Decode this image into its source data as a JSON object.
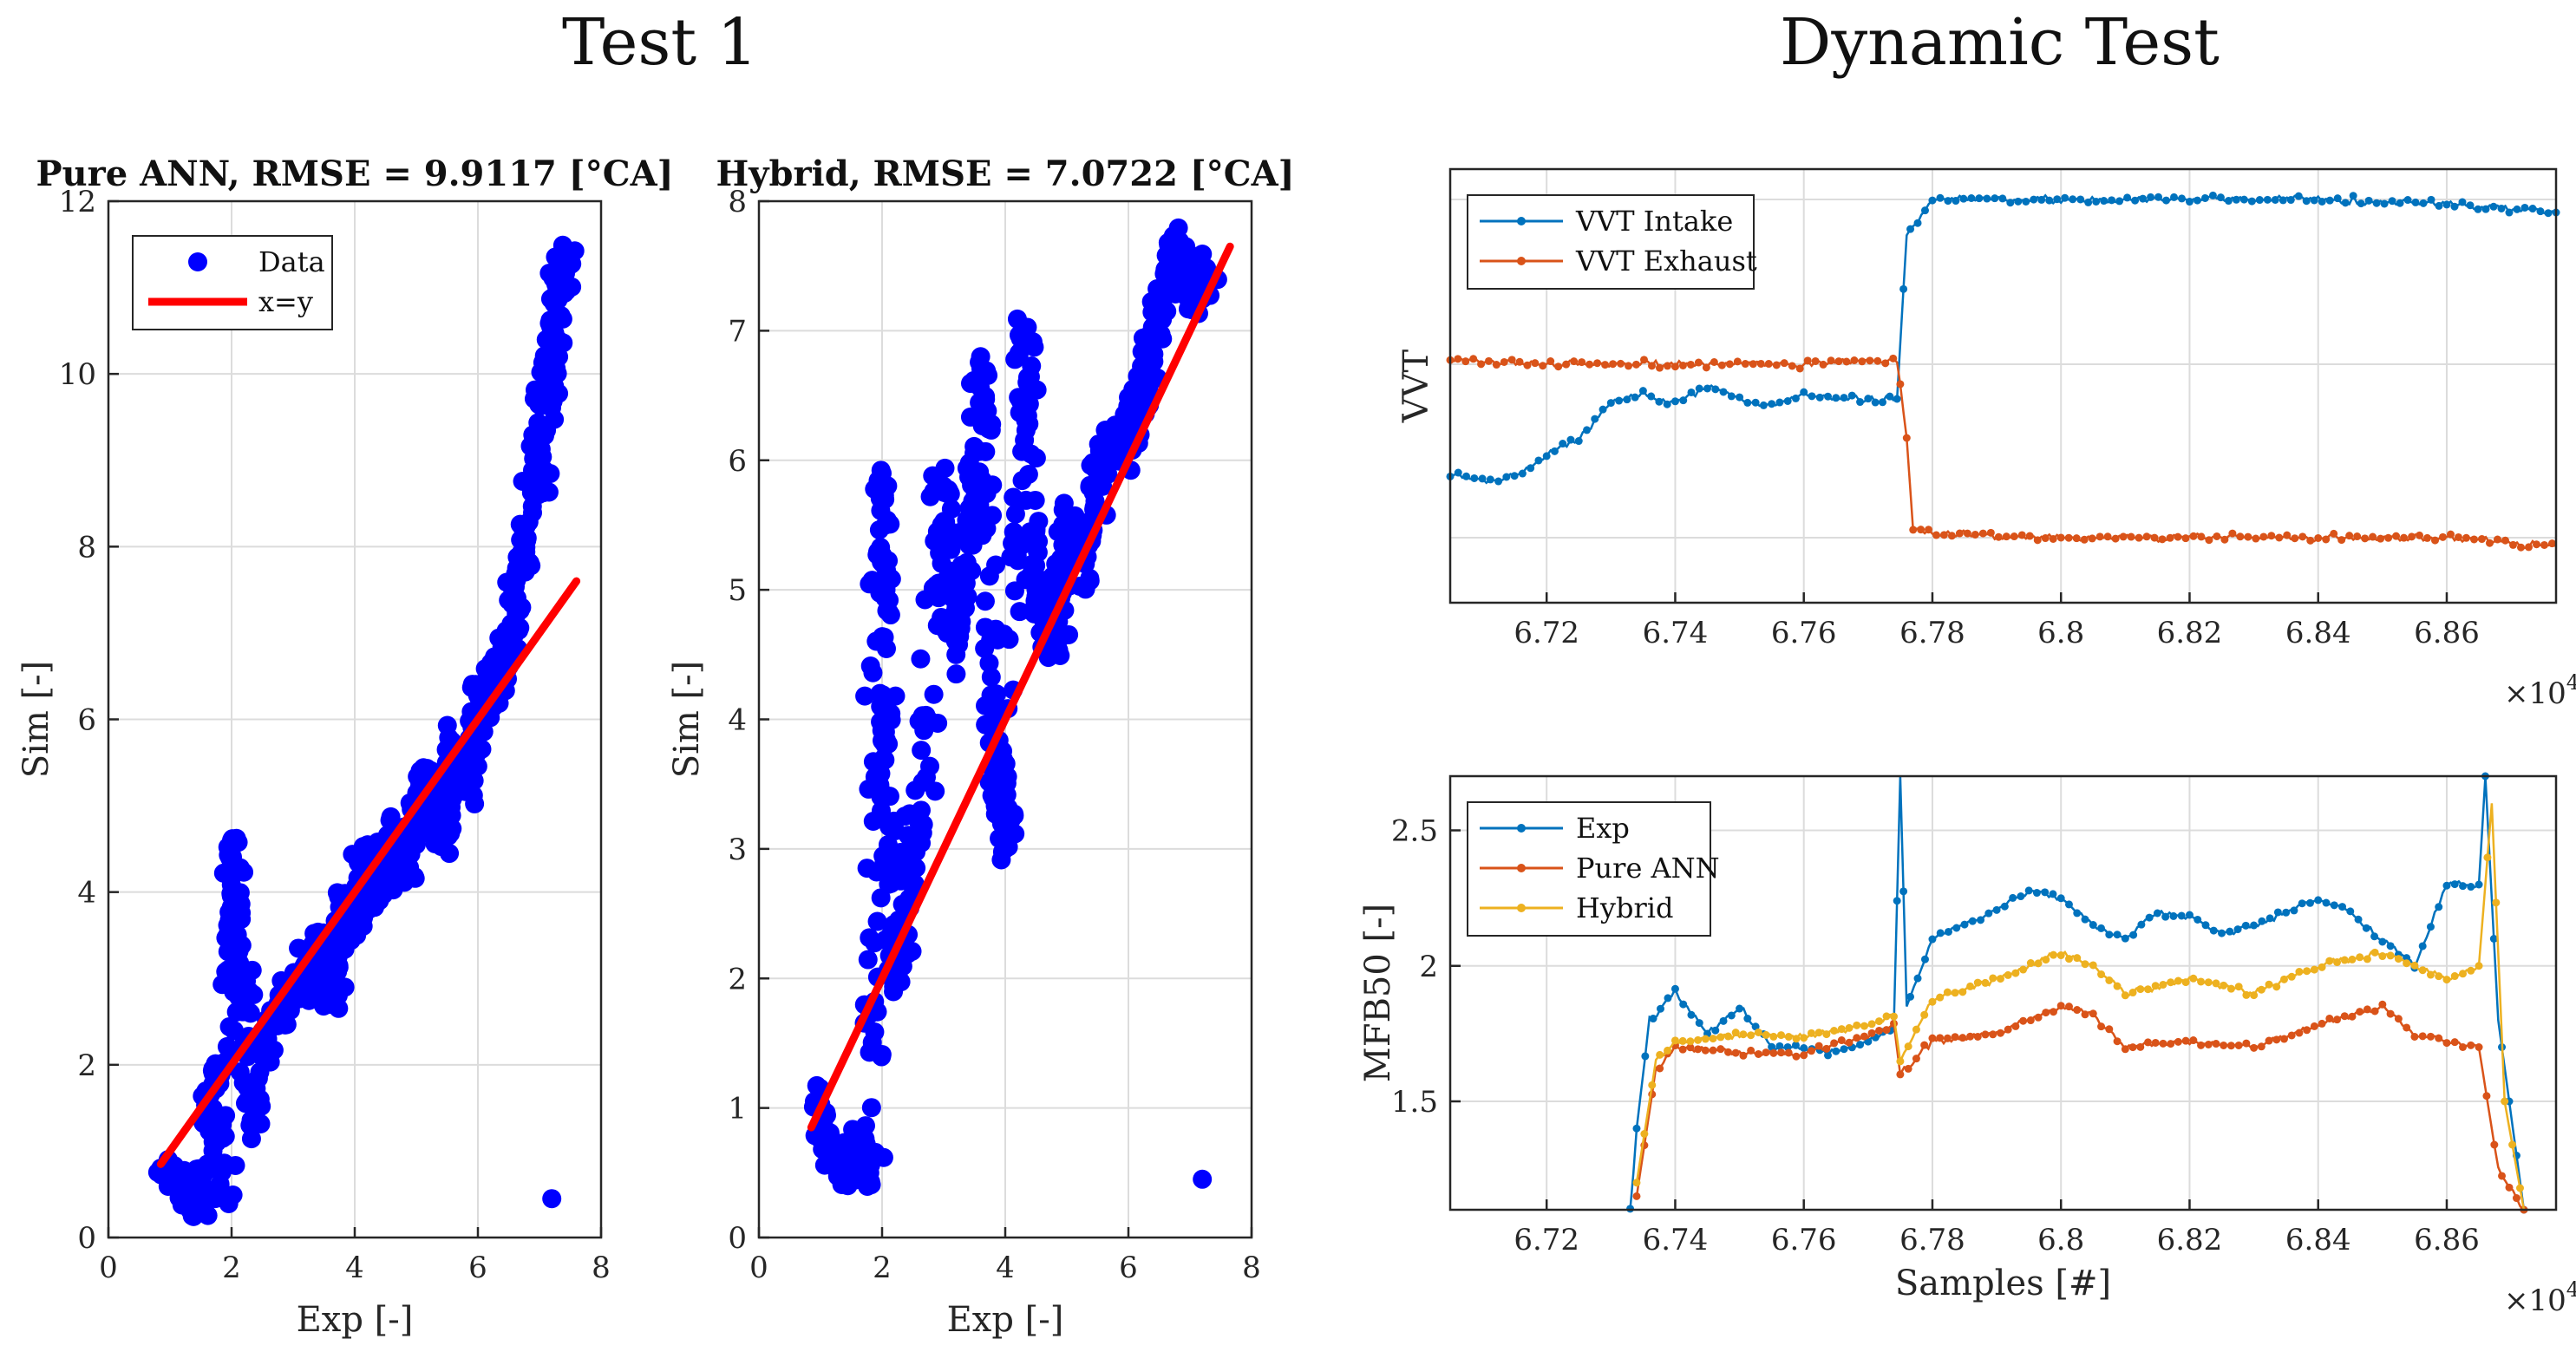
{
  "headings": {
    "left": "Test 1",
    "right": "Dynamic Test"
  },
  "chart_data": [
    {
      "type": "scatter",
      "title": "Pure ANN, RMSE = 9.9117 [°CA]",
      "xlabel": "Exp [-]",
      "ylabel": "Sim [-]",
      "xlim": [
        0,
        8
      ],
      "ylim": [
        0,
        12
      ],
      "xticks": [
        "0",
        "2",
        "4",
        "6",
        "8"
      ],
      "yticks": [
        "0",
        "2",
        "4",
        "6",
        "8",
        "10",
        "12"
      ],
      "grid": true,
      "legend_position": "top-left",
      "series": [
        {
          "name": "Data",
          "kind": "points",
          "color": "#0000ff",
          "points": [
            [
              0.85,
              0.8
            ],
            [
              1.3,
              0.6
            ],
            [
              1.5,
              0.4
            ],
            [
              1.9,
              0.45
            ],
            [
              2.0,
              4.6
            ],
            [
              2.1,
              3.3
            ],
            [
              1.7,
              1.9
            ],
            [
              2.3,
              1.3
            ],
            [
              2.6,
              2.4
            ],
            [
              3.0,
              2.9
            ],
            [
              3.4,
              3.3
            ],
            [
              3.6,
              2.7
            ],
            [
              3.8,
              3.8
            ],
            [
              4.0,
              3.6
            ],
            [
              4.2,
              4.5
            ],
            [
              4.4,
              3.9
            ],
            [
              4.6,
              4.7
            ],
            [
              4.8,
              4.2
            ],
            [
              5.0,
              4.9
            ],
            [
              5.2,
              5.4
            ],
            [
              5.4,
              4.7
            ],
            [
              5.6,
              5.7
            ],
            [
              5.8,
              5.2
            ],
            [
              6.0,
              6.1
            ],
            [
              6.2,
              6.3
            ],
            [
              6.5,
              6.9
            ],
            [
              6.8,
              8.1
            ],
            [
              7.0,
              9.0
            ],
            [
              7.2,
              10.2
            ],
            [
              7.3,
              11.1
            ],
            [
              7.5,
              11.3
            ],
            [
              7.2,
              0.45
            ]
          ]
        },
        {
          "name": "x=y",
          "kind": "line",
          "color": "#ff0000",
          "points": [
            [
              0.85,
              0.85
            ],
            [
              7.6,
              7.6
            ]
          ]
        }
      ]
    },
    {
      "type": "scatter",
      "title": "Hybrid, RMSE = 7.0722 [°CA]",
      "xlabel": "Exp [-]",
      "ylabel": "Sim [-]",
      "xlim": [
        0,
        8
      ],
      "ylim": [
        0,
        8
      ],
      "xticks": [
        "0",
        "2",
        "4",
        "6",
        "8"
      ],
      "yticks": [
        "0",
        "1",
        "2",
        "3",
        "4",
        "5",
        "6",
        "7",
        "8"
      ],
      "grid": true,
      "series": [
        {
          "name": "Data",
          "kind": "points",
          "color": "#0000ff",
          "points": [
            [
              0.9,
              1.05
            ],
            [
              1.3,
              0.5
            ],
            [
              1.6,
              0.7
            ],
            [
              1.8,
              0.5
            ],
            [
              2.0,
              5.9
            ],
            [
              2.0,
              4.6
            ],
            [
              2.2,
              2.0
            ],
            [
              2.6,
              3.2
            ],
            [
              3.0,
              5.8
            ],
            [
              3.2,
              4.5
            ],
            [
              3.5,
              5.6
            ],
            [
              3.6,
              6.8
            ],
            [
              3.8,
              4.0
            ],
            [
              4.0,
              3.0
            ],
            [
              4.3,
              7.0
            ],
            [
              4.5,
              5.0
            ],
            [
              4.8,
              4.6
            ],
            [
              5.0,
              5.5
            ],
            [
              5.3,
              5.2
            ],
            [
              5.6,
              6.0
            ],
            [
              6.0,
              6.2
            ],
            [
              6.3,
              6.6
            ],
            [
              6.5,
              7.1
            ],
            [
              6.7,
              7.7
            ],
            [
              7.0,
              7.3
            ],
            [
              7.3,
              7.4
            ],
            [
              7.2,
              0.45
            ]
          ]
        },
        {
          "name": "x=y",
          "kind": "line",
          "color": "#ff0000",
          "points": [
            [
              0.85,
              0.85
            ],
            [
              7.65,
              7.65
            ]
          ]
        }
      ]
    },
    {
      "type": "line",
      "title": "",
      "xlabel": "",
      "ylabel": "VVT",
      "xlim": [
        67050,
        68770
      ],
      "ylim": [
        0,
        1
      ],
      "xticks": [
        "6.72",
        "6.74",
        "6.76",
        "6.78",
        "6.8",
        "6.82",
        "6.84",
        "6.86"
      ],
      "yticks": [],
      "x_exponent": "×10",
      "x_exponent_power": "4",
      "grid": true,
      "legend_position": "top-left",
      "series": [
        {
          "name": "VVT Intake",
          "color": "#0072bd",
          "points": [
            [
              67050,
              0.3
            ],
            [
              67100,
              0.28
            ],
            [
              67150,
              0.29
            ],
            [
              67200,
              0.34
            ],
            [
              67250,
              0.38
            ],
            [
              67300,
              0.46
            ],
            [
              67350,
              0.48
            ],
            [
              67400,
              0.46
            ],
            [
              67450,
              0.5
            ],
            [
              67500,
              0.47
            ],
            [
              67550,
              0.45
            ],
            [
              67600,
              0.48
            ],
            [
              67650,
              0.47
            ],
            [
              67700,
              0.47
            ],
            [
              67745,
              0.47
            ],
            [
              67760,
              0.85
            ],
            [
              67800,
              0.93
            ],
            [
              68000,
              0.93
            ],
            [
              68200,
              0.93
            ],
            [
              68400,
              0.93
            ],
            [
              68600,
              0.92
            ],
            [
              68770,
              0.9
            ]
          ]
        },
        {
          "name": "VVT Exhaust",
          "color": "#d95319",
          "points": [
            [
              67050,
              0.56
            ],
            [
              67200,
              0.55
            ],
            [
              67400,
              0.55
            ],
            [
              67600,
              0.55
            ],
            [
              67745,
              0.56
            ],
            [
              67760,
              0.38
            ],
            [
              67770,
              0.17
            ],
            [
              67800,
              0.16
            ],
            [
              68000,
              0.15
            ],
            [
              68200,
              0.15
            ],
            [
              68400,
              0.15
            ],
            [
              68600,
              0.15
            ],
            [
              68770,
              0.13
            ]
          ]
        }
      ]
    },
    {
      "type": "line",
      "title": "",
      "xlabel": "Samples [#]",
      "ylabel": "MFB50 [-]",
      "xlim": [
        67050,
        68770
      ],
      "ylim": [
        1.1,
        2.7
      ],
      "xticks": [
        "6.72",
        "6.74",
        "6.76",
        "6.78",
        "6.8",
        "6.82",
        "6.84",
        "6.86"
      ],
      "yticks": [
        "1.5",
        "2",
        "2.5"
      ],
      "x_exponent": "×10",
      "x_exponent_power": "4",
      "grid": true,
      "legend_position": "top-left",
      "series": [
        {
          "name": "Exp",
          "color": "#0072bd",
          "points": [
            [
              67330,
              1.1
            ],
            [
              67340,
              1.4
            ],
            [
              67360,
              1.8
            ],
            [
              67400,
              1.9
            ],
            [
              67450,
              1.75
            ],
            [
              67500,
              1.85
            ],
            [
              67550,
              1.7
            ],
            [
              67600,
              1.7
            ],
            [
              67650,
              1.68
            ],
            [
              67700,
              1.72
            ],
            [
              67740,
              1.78
            ],
            [
              67750,
              2.7
            ],
            [
              67760,
              1.85
            ],
            [
              67800,
              2.1
            ],
            [
              67850,
              2.15
            ],
            [
              67900,
              2.2
            ],
            [
              67950,
              2.28
            ],
            [
              68000,
              2.25
            ],
            [
              68050,
              2.15
            ],
            [
              68100,
              2.1
            ],
            [
              68150,
              2.2
            ],
            [
              68200,
              2.18
            ],
            [
              68250,
              2.12
            ],
            [
              68300,
              2.15
            ],
            [
              68350,
              2.2
            ],
            [
              68400,
              2.25
            ],
            [
              68450,
              2.2
            ],
            [
              68500,
              2.1
            ],
            [
              68550,
              2.0
            ],
            [
              68600,
              2.3
            ],
            [
              68650,
              2.3
            ],
            [
              68660,
              2.7
            ],
            [
              68680,
              1.8
            ],
            [
              68720,
              1.1
            ]
          ]
        },
        {
          "name": "Pure ANN",
          "color": "#d95319",
          "points": [
            [
              67340,
              1.15
            ],
            [
              67370,
              1.62
            ],
            [
              67400,
              1.7
            ],
            [
              67500,
              1.68
            ],
            [
              67600,
              1.68
            ],
            [
              67700,
              1.74
            ],
            [
              67740,
              1.78
            ],
            [
              67750,
              1.6
            ],
            [
              67800,
              1.72
            ],
            [
              67900,
              1.75
            ],
            [
              68000,
              1.85
            ],
            [
              68050,
              1.82
            ],
            [
              68100,
              1.7
            ],
            [
              68200,
              1.72
            ],
            [
              68300,
              1.7
            ],
            [
              68400,
              1.78
            ],
            [
              68500,
              1.85
            ],
            [
              68550,
              1.75
            ],
            [
              68600,
              1.72
            ],
            [
              68650,
              1.7
            ],
            [
              68680,
              1.25
            ],
            [
              68720,
              1.1
            ]
          ]
        },
        {
          "name": "Hybrid",
          "color": "#edb120",
          "points": [
            [
              67340,
              1.2
            ],
            [
              67370,
              1.65
            ],
            [
              67400,
              1.72
            ],
            [
              67500,
              1.75
            ],
            [
              67600,
              1.74
            ],
            [
              67700,
              1.78
            ],
            [
              67740,
              1.82
            ],
            [
              67750,
              1.65
            ],
            [
              67800,
              1.88
            ],
            [
              67900,
              1.95
            ],
            [
              68000,
              2.05
            ],
            [
              68050,
              2.0
            ],
            [
              68100,
              1.9
            ],
            [
              68200,
              1.95
            ],
            [
              68300,
              1.9
            ],
            [
              68400,
              2.0
            ],
            [
              68500,
              2.05
            ],
            [
              68550,
              2.0
            ],
            [
              68600,
              1.95
            ],
            [
              68650,
              2.0
            ],
            [
              68670,
              2.6
            ],
            [
              68690,
              1.5
            ],
            [
              68720,
              1.1
            ]
          ]
        }
      ]
    }
  ]
}
